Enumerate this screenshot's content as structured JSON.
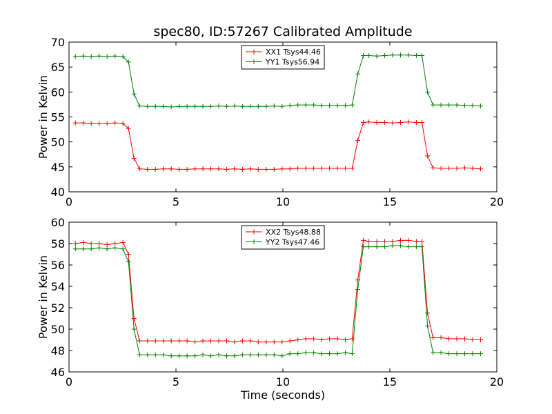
{
  "chart_data": [
    {
      "type": "line",
      "title": "spec80, ID:57267 Calibrated Amplitude",
      "xlabel": "",
      "ylabel": "Power in Kelvin",
      "xlim": [
        0,
        20
      ],
      "ylim": [
        40,
        70
      ],
      "xticks": [
        "0",
        "5",
        "10",
        "15",
        "20"
      ],
      "yticks": [
        "40",
        "45",
        "50",
        "55",
        "60",
        "65",
        "70"
      ],
      "legend_position": "top-center",
      "grid": false,
      "x": [
        0.3,
        0.67,
        1.04,
        1.41,
        1.78,
        2.15,
        2.52,
        2.78,
        3.04,
        3.3,
        3.67,
        4.04,
        4.41,
        4.78,
        5.15,
        5.52,
        5.89,
        6.26,
        6.63,
        7.0,
        7.37,
        7.74,
        8.11,
        8.48,
        8.85,
        9.22,
        9.59,
        9.96,
        10.33,
        10.7,
        11.07,
        11.44,
        11.81,
        12.18,
        12.55,
        12.92,
        13.24,
        13.5,
        13.76,
        14.02,
        14.39,
        14.76,
        15.13,
        15.5,
        15.87,
        16.24,
        16.5,
        16.76,
        17.02,
        17.39,
        17.76,
        18.13,
        18.5,
        18.87,
        19.24
      ],
      "series": [
        {
          "name": "XX1 Tsys44.46",
          "color": "#ff0000",
          "values": [
            53.8,
            53.8,
            53.7,
            53.7,
            53.7,
            53.8,
            53.7,
            52.7,
            46.7,
            44.6,
            44.5,
            44.5,
            44.6,
            44.6,
            44.5,
            44.5,
            44.6,
            44.6,
            44.6,
            44.6,
            44.5,
            44.6,
            44.5,
            44.6,
            44.5,
            44.5,
            44.5,
            44.6,
            44.6,
            44.7,
            44.7,
            44.7,
            44.7,
            44.7,
            44.7,
            44.7,
            44.7,
            50.3,
            53.9,
            54.0,
            53.9,
            53.9,
            53.8,
            53.9,
            54.0,
            53.9,
            53.9,
            47.2,
            44.8,
            44.7,
            44.7,
            44.7,
            44.8,
            44.7,
            44.6
          ]
        },
        {
          "name": "YY1 Tsys56.94",
          "color": "#008000",
          "values": [
            67.1,
            67.2,
            67.1,
            67.2,
            67.1,
            67.2,
            67.1,
            66.0,
            59.6,
            57.2,
            57.1,
            57.1,
            57.1,
            57.0,
            57.1,
            57.1,
            57.1,
            57.1,
            57.1,
            57.2,
            57.1,
            57.2,
            57.1,
            57.1,
            57.1,
            57.1,
            57.2,
            57.1,
            57.3,
            57.4,
            57.4,
            57.4,
            57.3,
            57.3,
            57.3,
            57.3,
            57.4,
            63.6,
            67.3,
            67.3,
            67.2,
            67.3,
            67.4,
            67.4,
            67.4,
            67.3,
            67.3,
            60.0,
            57.4,
            57.4,
            57.4,
            57.4,
            57.3,
            57.3,
            57.2
          ]
        }
      ]
    },
    {
      "type": "line",
      "title": "",
      "xlabel": "Time (seconds)",
      "ylabel": "Power in Kelvin",
      "xlim": [
        0,
        20
      ],
      "ylim": [
        46,
        60
      ],
      "xticks": [
        "0",
        "5",
        "10",
        "15",
        "20"
      ],
      "yticks": [
        "46",
        "48",
        "50",
        "52",
        "54",
        "56",
        "58",
        "60"
      ],
      "legend_position": "top-center",
      "grid": false,
      "x": [
        0.3,
        0.67,
        1.04,
        1.41,
        1.78,
        2.15,
        2.52,
        2.78,
        3.04,
        3.3,
        3.67,
        4.04,
        4.41,
        4.78,
        5.15,
        5.52,
        5.89,
        6.26,
        6.63,
        7.0,
        7.37,
        7.74,
        8.11,
        8.48,
        8.85,
        9.22,
        9.59,
        9.96,
        10.33,
        10.7,
        11.07,
        11.44,
        11.81,
        12.18,
        12.55,
        12.92,
        13.24,
        13.5,
        13.76,
        14.02,
        14.39,
        14.76,
        15.13,
        15.5,
        15.87,
        16.24,
        16.5,
        16.76,
        17.02,
        17.39,
        17.76,
        18.13,
        18.5,
        18.87,
        19.24
      ],
      "series": [
        {
          "name": "XX2 Tsys48.88",
          "color": "#ff0000",
          "values": [
            58.0,
            58.1,
            58.0,
            58.0,
            57.9,
            58.0,
            58.1,
            57.0,
            51.0,
            48.9,
            48.9,
            48.9,
            48.9,
            48.9,
            48.9,
            48.9,
            48.8,
            48.9,
            48.9,
            48.9,
            48.9,
            48.8,
            48.9,
            48.9,
            48.8,
            48.8,
            48.8,
            48.8,
            48.9,
            49.0,
            49.1,
            49.1,
            49.0,
            49.1,
            49.1,
            49.0,
            49.1,
            54.6,
            58.3,
            58.2,
            58.2,
            58.2,
            58.2,
            58.3,
            58.3,
            58.2,
            58.2,
            51.5,
            49.2,
            49.2,
            49.1,
            49.1,
            49.1,
            49.0,
            49.0
          ]
        },
        {
          "name": "YY2 Tsys47.46",
          "color": "#008000",
          "values": [
            57.5,
            57.5,
            57.5,
            57.6,
            57.5,
            57.6,
            57.5,
            56.3,
            50.0,
            47.6,
            47.6,
            47.6,
            47.6,
            47.5,
            47.5,
            47.5,
            47.5,
            47.6,
            47.5,
            47.6,
            47.5,
            47.5,
            47.6,
            47.6,
            47.6,
            47.6,
            47.6,
            47.5,
            47.7,
            47.7,
            47.8,
            47.8,
            47.7,
            47.7,
            47.7,
            47.8,
            47.7,
            53.7,
            57.7,
            57.7,
            57.7,
            57.7,
            57.8,
            57.8,
            57.7,
            57.7,
            57.7,
            50.3,
            47.8,
            47.8,
            47.7,
            47.7,
            47.7,
            47.7,
            47.7
          ]
        }
      ]
    }
  ]
}
